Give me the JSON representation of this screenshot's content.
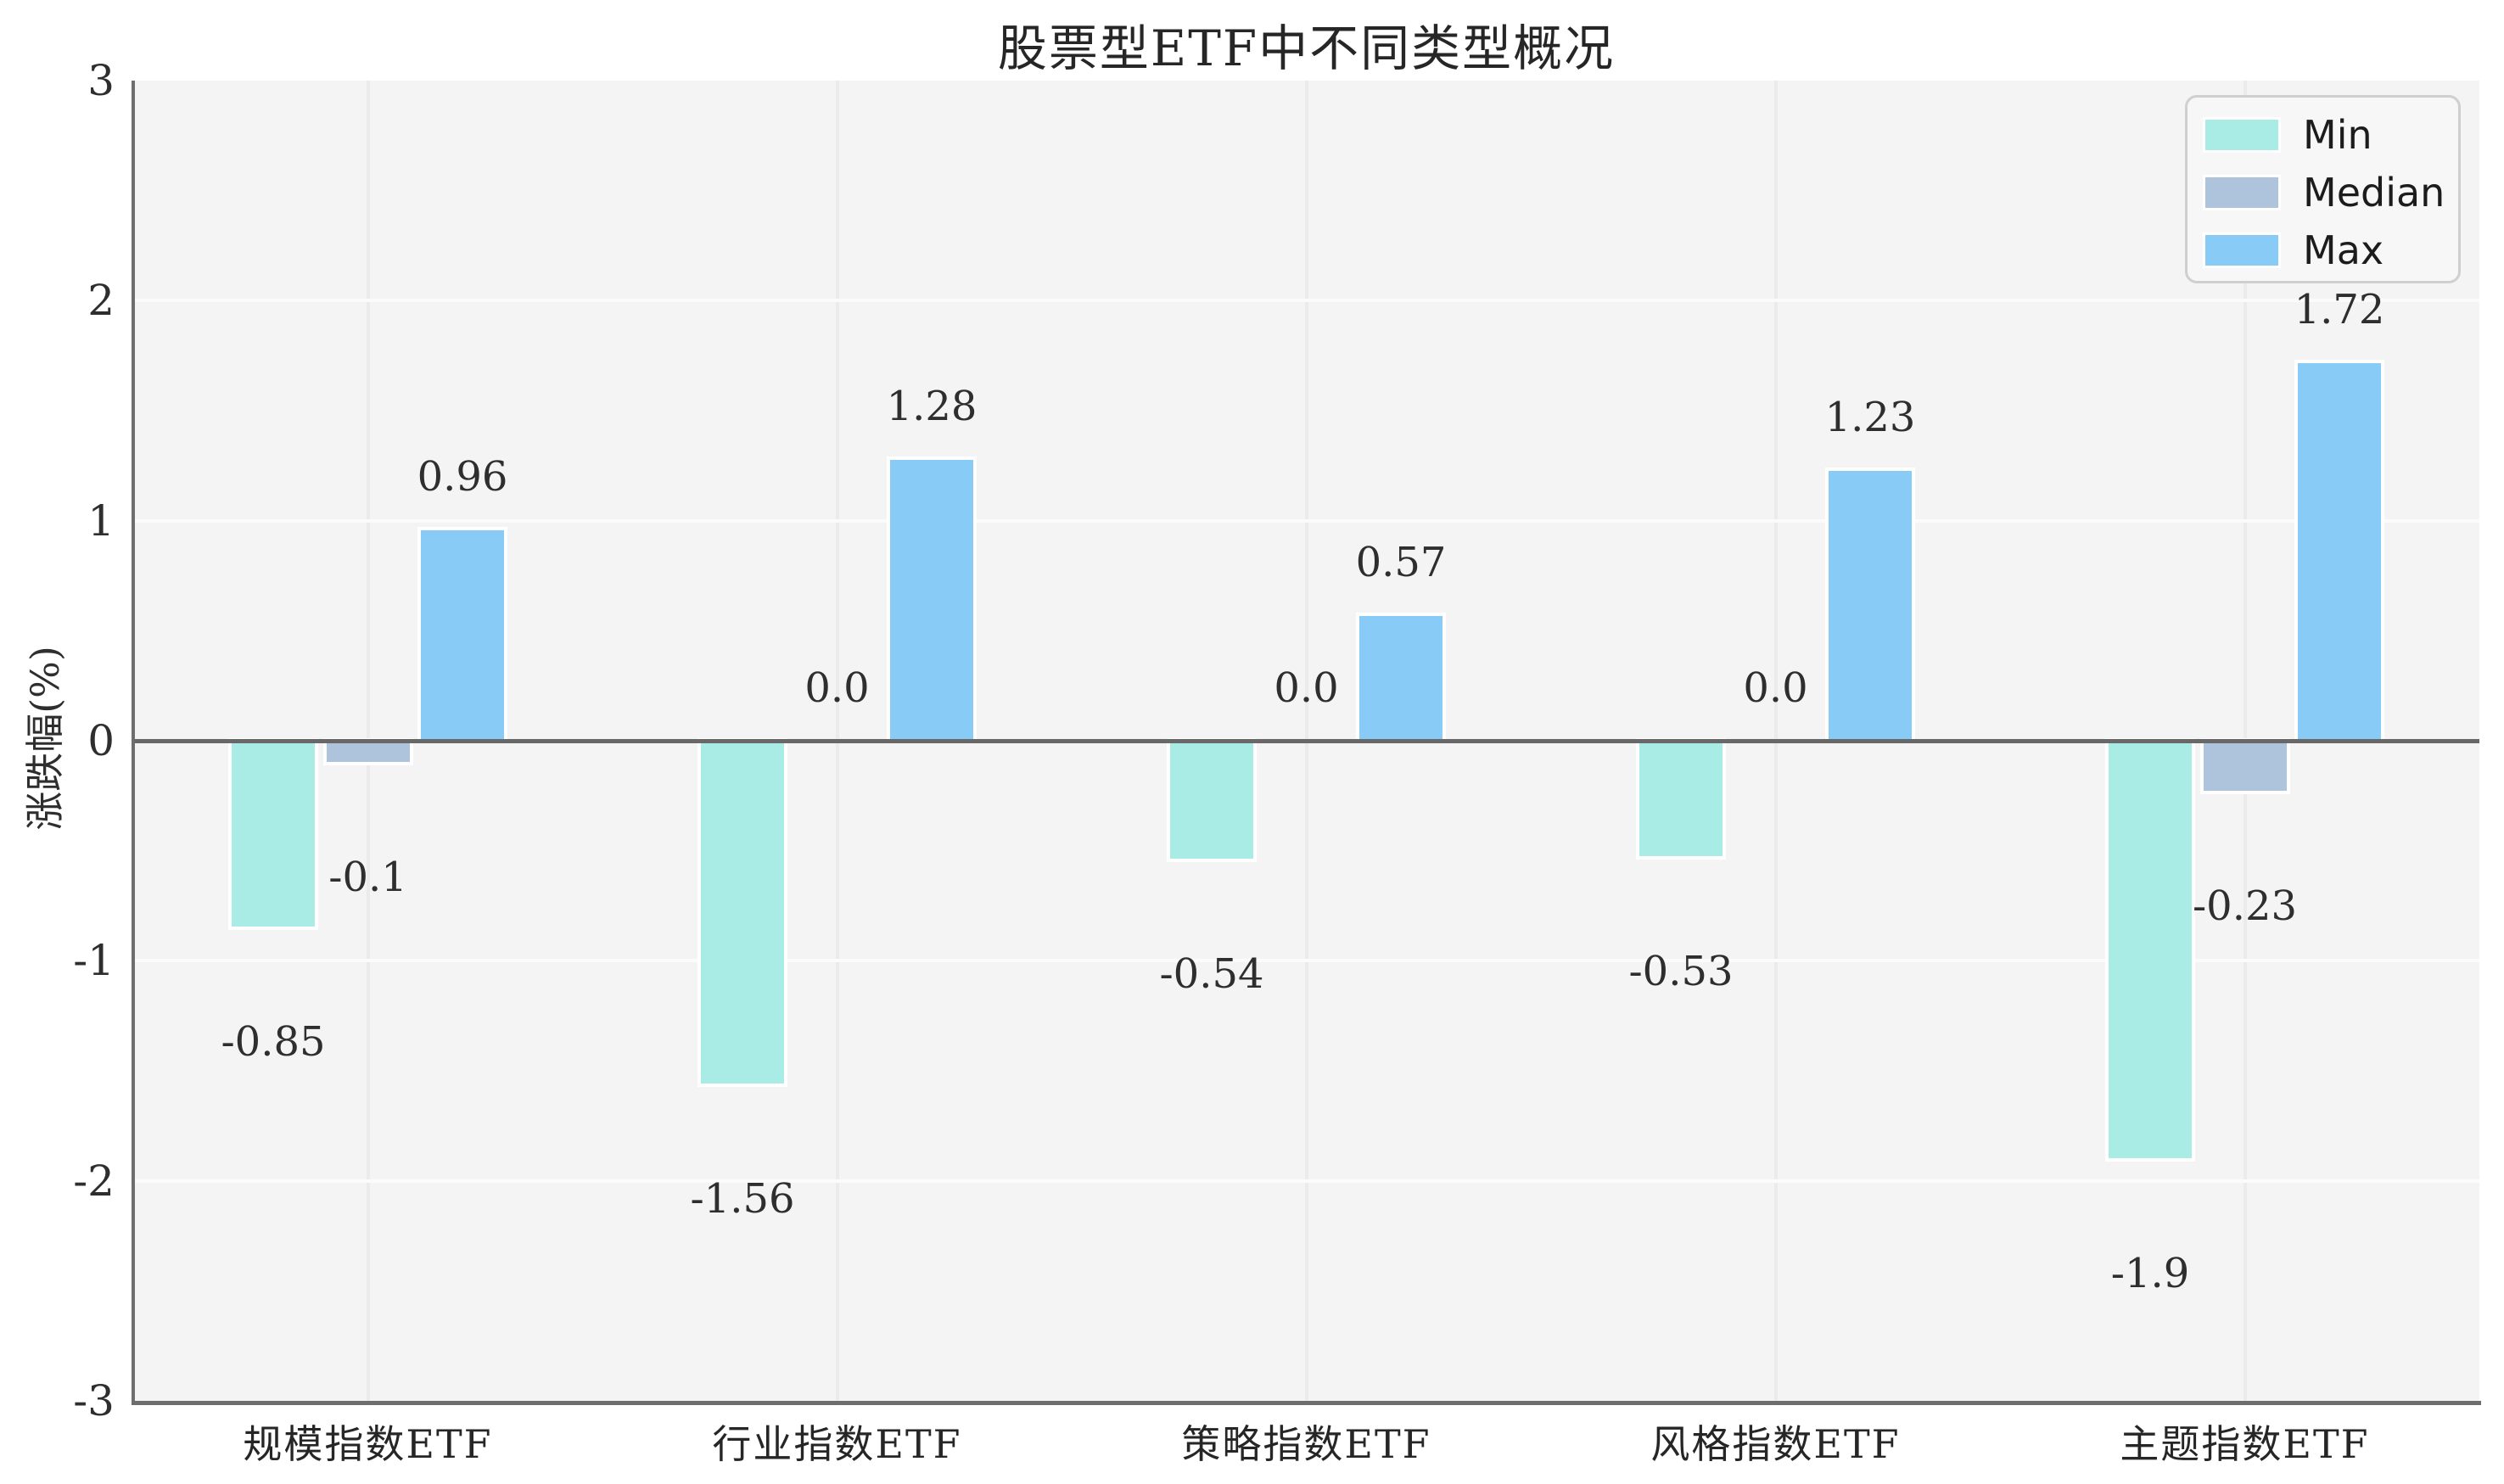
{
  "chart_data": {
    "type": "bar",
    "title": "股票型ETF中不同类型概况",
    "xlabel": "",
    "ylabel": "涨跌幅(%)",
    "categories": [
      "规模指数ETF",
      "行业指数ETF",
      "策略指数ETF",
      "风格指数ETF",
      "主题指数ETF"
    ],
    "series": [
      {
        "name": "Min",
        "color": "#a9ebe5",
        "values": [
          -0.85,
          -1.56,
          -0.54,
          -0.53,
          -1.9
        ],
        "labels": [
          "-0.85",
          "-1.56",
          "-0.54",
          "-0.53",
          "-1.9"
        ]
      },
      {
        "name": "Median",
        "color": "#aec3dc",
        "values": [
          -0.1,
          0,
          0,
          0,
          -0.23
        ],
        "labels": [
          "-0.1",
          "0.0",
          "0.0",
          "0.0",
          "-0.23"
        ]
      },
      {
        "name": "Max",
        "color": "#87cbf6",
        "values": [
          0.96,
          1.28,
          0.57,
          1.23,
          1.72
        ],
        "labels": [
          "0.96",
          "1.28",
          "0.57",
          "1.23",
          "1.72"
        ]
      }
    ],
    "ylim": [
      -3,
      3
    ],
    "yticks": [
      3,
      2,
      1,
      0,
      -1,
      -2,
      -3
    ],
    "grid": true,
    "legend_position": "upper right"
  },
  "colors": {
    "figure_bg": "#ffffff",
    "plot_bg": "#f4f4f4",
    "grid_vertical": "#ebebeb",
    "grid_horizontal": "#fbfbfb",
    "spine": "#6e6e6e",
    "zero_line": "#686868",
    "bar_edge": "#ffffff",
    "text": "#2e2e2e",
    "legend_bg": "#f7f7f7",
    "legend_border": "#cfcfcf"
  }
}
